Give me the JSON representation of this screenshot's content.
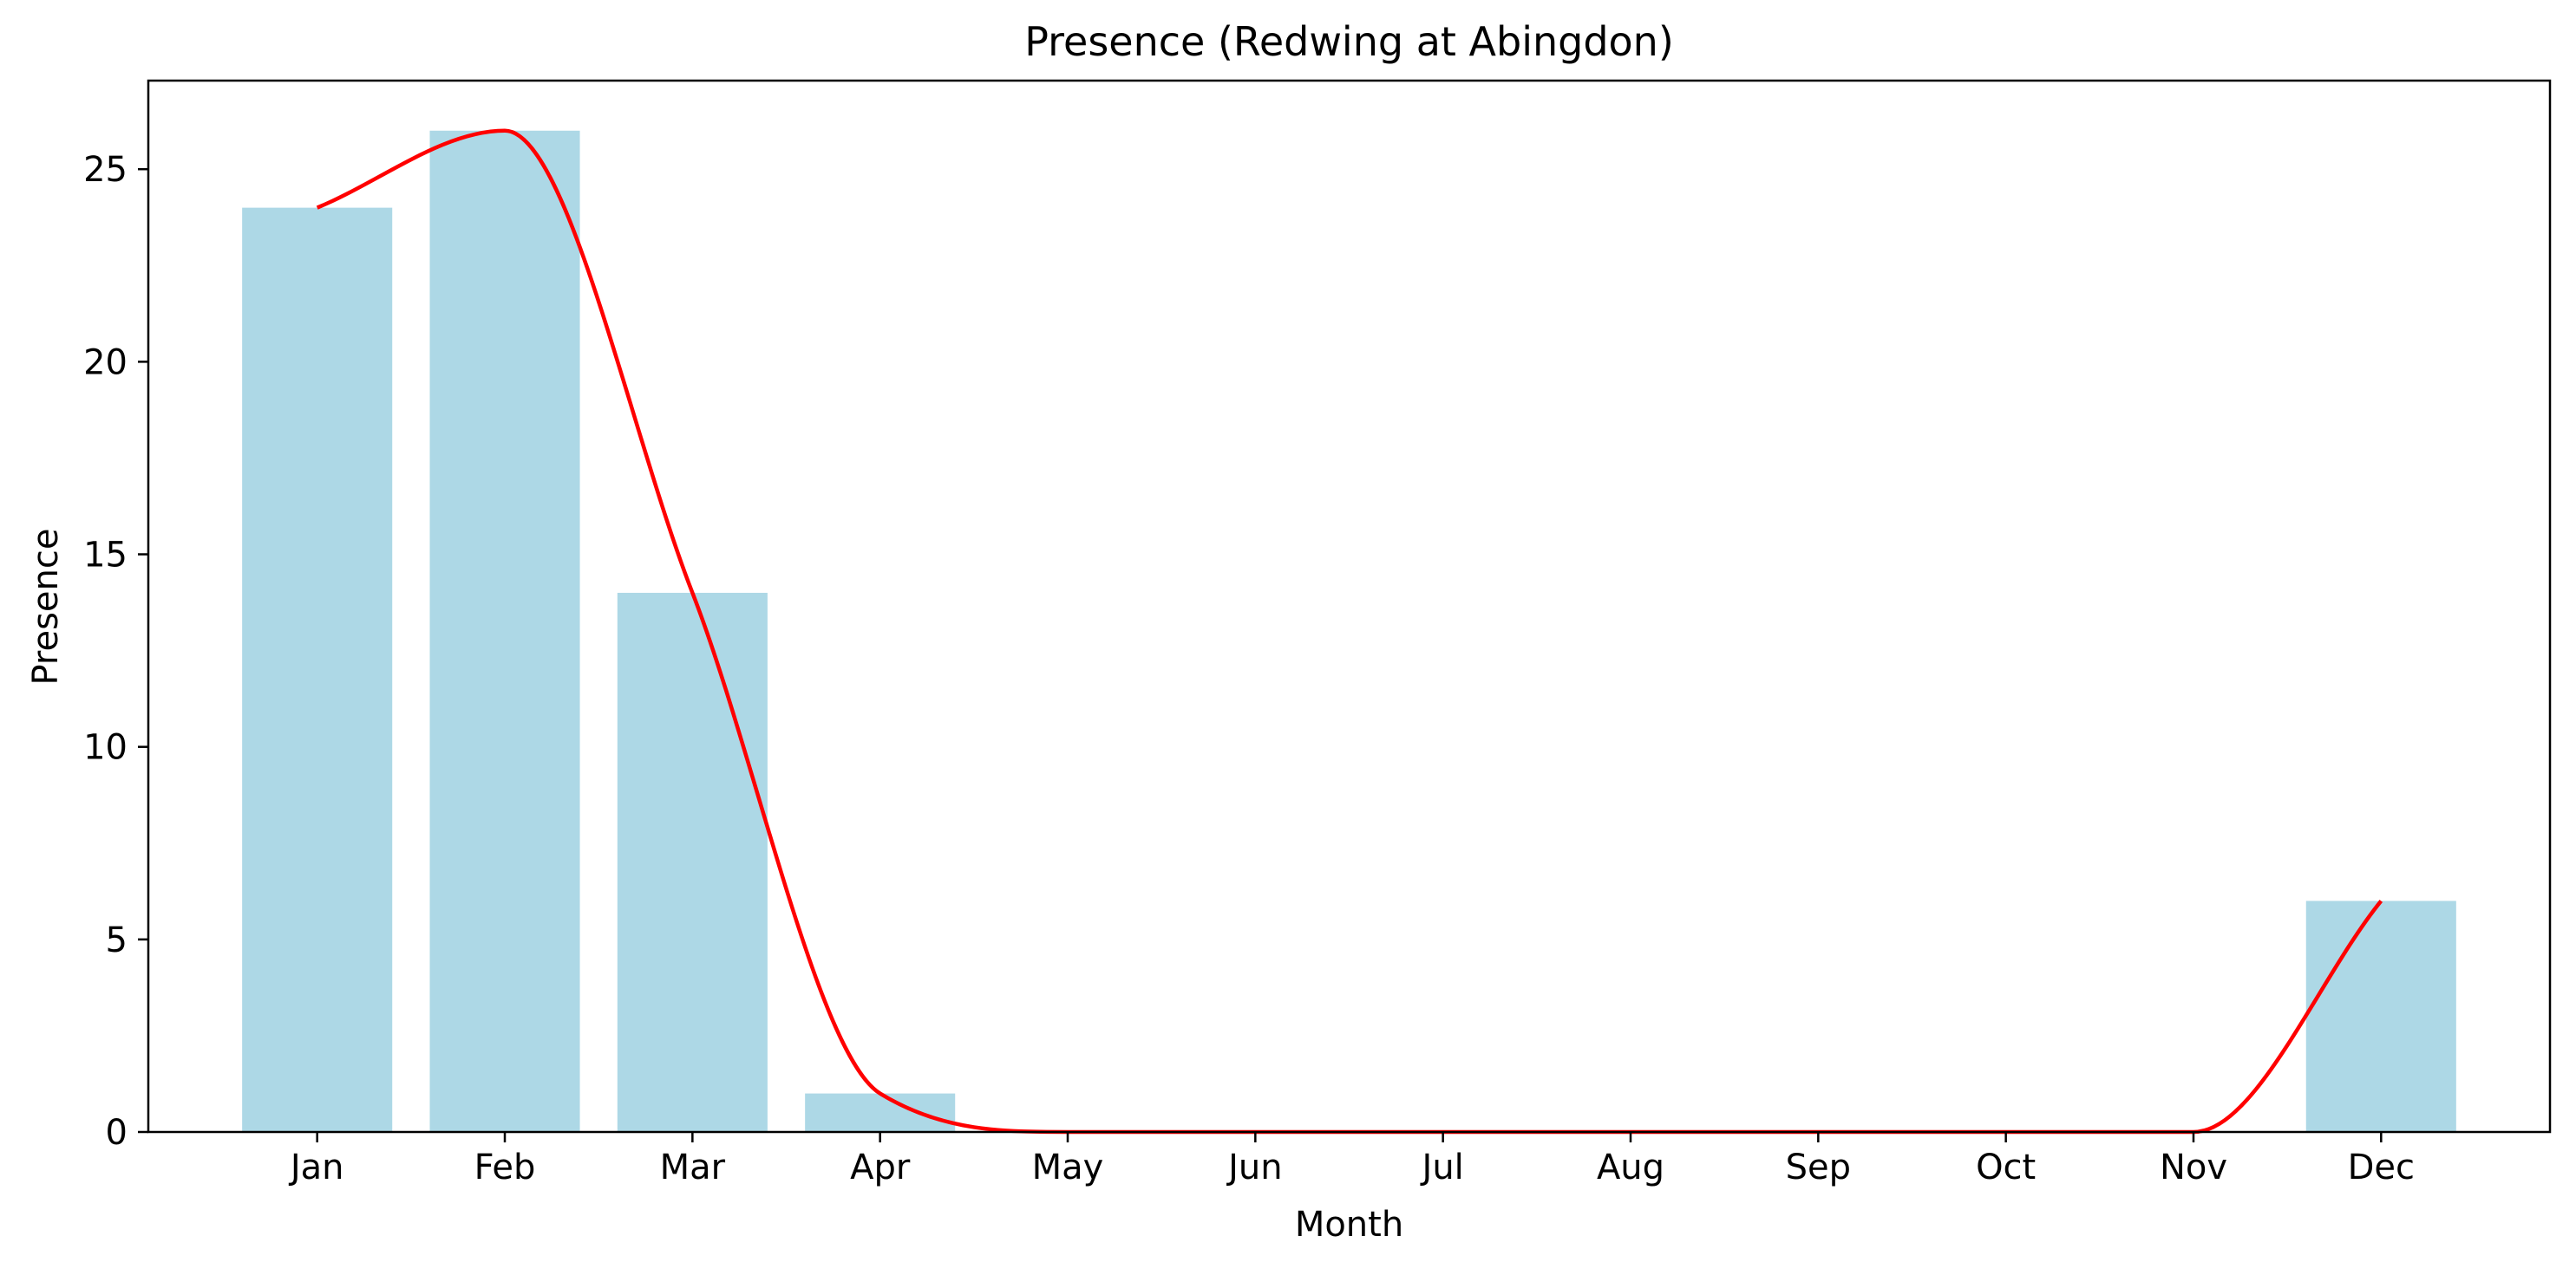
{
  "chart_data": {
    "type": "bar",
    "title": "Presence (Redwing at Abingdon)",
    "xlabel": "Month",
    "ylabel": "Presence",
    "categories": [
      "Jan",
      "Feb",
      "Mar",
      "Apr",
      "May",
      "Jun",
      "Jul",
      "Aug",
      "Sep",
      "Oct",
      "Nov",
      "Dec"
    ],
    "values": [
      24,
      26,
      14,
      1,
      0,
      0,
      0,
      0,
      0,
      0,
      0,
      6
    ],
    "ylim": [
      0,
      27.3
    ],
    "yticks": [
      0,
      5,
      10,
      15,
      20,
      25
    ],
    "ytick_labels": [
      "0",
      "5",
      "10",
      "15",
      "20",
      "25"
    ],
    "bar_color": "#add8e6",
    "line_color": "#ff0000",
    "line": "smoothed curve through monthly values",
    "grid": false
  }
}
